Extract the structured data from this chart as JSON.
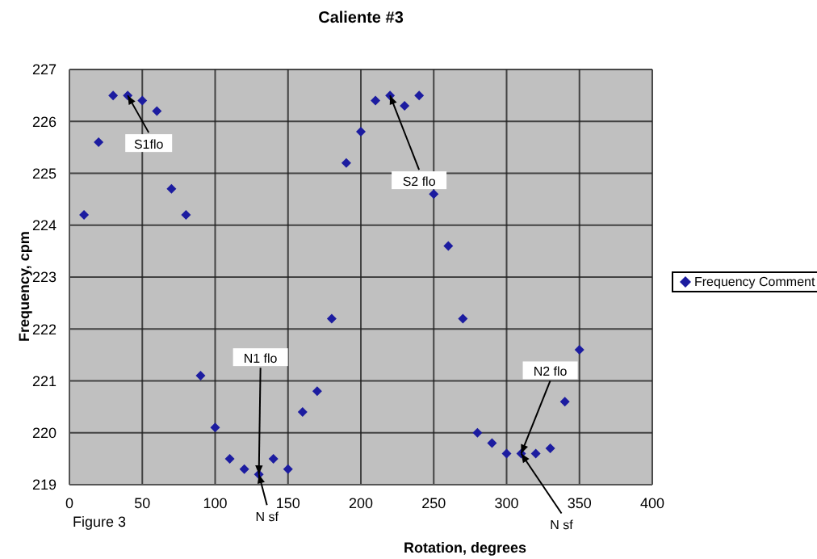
{
  "chart_data": {
    "type": "scatter",
    "title": "Caliente #3",
    "xlabel": "Rotation, degrees",
    "ylabel": "Frequency, cpm",
    "x": [
      10,
      20,
      30,
      40,
      50,
      60,
      70,
      80,
      90,
      100,
      110,
      120,
      130,
      140,
      150,
      160,
      170,
      180,
      190,
      200,
      210,
      220,
      230,
      240,
      250,
      260,
      270,
      280,
      290,
      300,
      310,
      320,
      330,
      340,
      350
    ],
    "series": [
      {
        "name": "Frequency Comment",
        "color": "#1c1ca0",
        "values": [
          224.2,
          225.6,
          226.5,
          226.5,
          226.4,
          226.2,
          224.7,
          224.2,
          221.1,
          220.1,
          219.5,
          219.3,
          219.2,
          219.5,
          219.3,
          220.4,
          220.8,
          222.2,
          225.2,
          225.8,
          226.4,
          226.5,
          226.3,
          226.5,
          224.6,
          223.6,
          222.2,
          220.0,
          219.8,
          219.6,
          219.6,
          219.6,
          219.7,
          220.6,
          221.6
        ]
      }
    ],
    "xlim": [
      0,
      400
    ],
    "xticks": [
      0,
      50,
      100,
      150,
      200,
      250,
      300,
      350,
      400
    ],
    "ylim": [
      219,
      227
    ],
    "yticks": [
      219,
      220,
      221,
      222,
      223,
      224,
      225,
      226,
      227
    ],
    "grid": true,
    "legend": "right",
    "marker": "diamond",
    "annotations": [
      {
        "text": "S1flo",
        "x": 40,
        "y": 226.5
      },
      {
        "text": "S2 flo",
        "x": 220,
        "y": 226.5
      },
      {
        "text": "N1 flo",
        "x": 130,
        "y": 219.2
      },
      {
        "text": "N sf",
        "x": 130,
        "y": 219.2
      },
      {
        "text": "N2 flo",
        "x": 310,
        "y": 219.6
      },
      {
        "text": "N sf",
        "x": 310,
        "y": 219.6
      },
      "Figure 3"
    ]
  }
}
